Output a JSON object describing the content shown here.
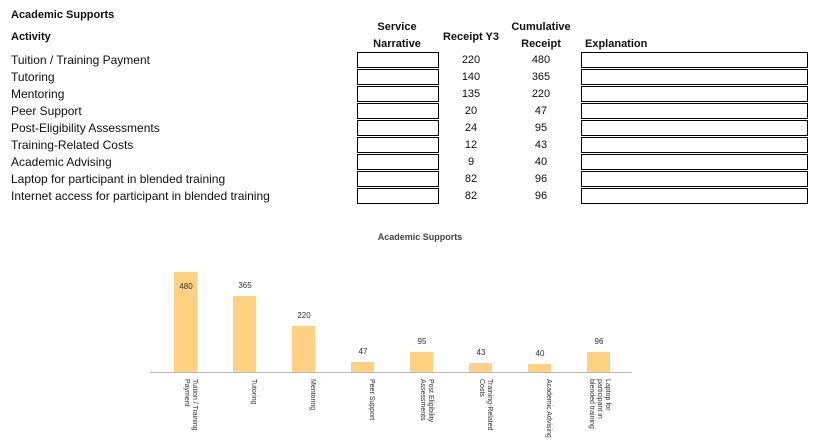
{
  "section_title": "Academic Supports",
  "columns": {
    "activity": "Activity",
    "service_narrative": "Service Narrative",
    "receipt": "Receipt Y3",
    "cumulative": "Cumulative Receipt",
    "explanation": "Explanation"
  },
  "rows": [
    {
      "activity": "Tuition / Training Payment",
      "receipt": "220",
      "cumulative": "480"
    },
    {
      "activity": "Tutoring",
      "receipt": "140",
      "cumulative": "365"
    },
    {
      "activity": "Mentoring",
      "receipt": "135",
      "cumulative": "220"
    },
    {
      "activity": "Peer Support",
      "receipt": "20",
      "cumulative": "47"
    },
    {
      "activity": "Post-Eligibility Assessments",
      "receipt": "24",
      "cumulative": "95"
    },
    {
      "activity": "Training-Related Costs",
      "receipt": "12",
      "cumulative": "43"
    },
    {
      "activity": "Academic Advising",
      "receipt": "9",
      "cumulative": "40"
    },
    {
      "activity": "Laptop for participant in blended training",
      "receipt": "82",
      "cumulative": "96"
    },
    {
      "activity": "Internet access for participant in blended training",
      "receipt": "82",
      "cumulative": "96"
    }
  ],
  "chart_data": {
    "type": "bar",
    "title": "Academic Supports",
    "categories": [
      "Tuition / Training Payment",
      "Tutoring",
      "Mentoring",
      "Peer Support",
      "Post Eligibility Assessments",
      "Training-Related Costs",
      "Academic Advising",
      "Laptop for participant in blended training"
    ],
    "values": [
      480,
      365,
      220,
      47,
      95,
      43,
      40,
      96
    ],
    "data_labels": [
      "480",
      "365",
      "220",
      "47",
      "95",
      "43",
      "40",
      "96"
    ],
    "ylim": [
      0,
      480
    ],
    "grid": false,
    "bar_color": "#FFD180"
  }
}
